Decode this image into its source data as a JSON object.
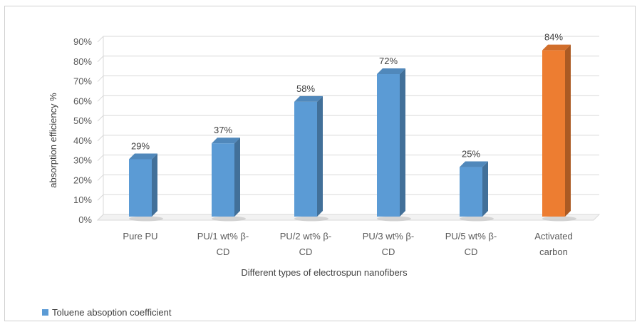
{
  "chart_data": {
    "type": "bar",
    "title": "",
    "xlabel": "Different types of electrospun nanofibers",
    "ylabel": "absorption efficiency %",
    "ylim": [
      0,
      90
    ],
    "yticks": [
      "0%",
      "10%",
      "20%",
      "30%",
      "40%",
      "50%",
      "60%",
      "70%",
      "80%",
      "90%"
    ],
    "categories": [
      [
        "Pure PU"
      ],
      [
        "PU/1 wt% β-",
        "CD"
      ],
      [
        "PU/2 wt% β-",
        "CD"
      ],
      [
        "PU/3 wt% β-",
        "CD"
      ],
      [
        "PU/5 wt% β-",
        "CD"
      ],
      [
        "Activated",
        "carbon"
      ]
    ],
    "series": [
      {
        "name": "Toluene absoption coefficient",
        "values": [
          29,
          37,
          58,
          72,
          25,
          84
        ],
        "labels": [
          "29%",
          "37%",
          "58%",
          "72%",
          "25%",
          "84%"
        ]
      }
    ],
    "bar_colors": [
      "#5b9bd5",
      "#5b9bd5",
      "#5b9bd5",
      "#5b9bd5",
      "#5b9bd5",
      "#ed7d31"
    ],
    "grid": true,
    "style": "3d-column",
    "legend_position": "bottom-left"
  }
}
